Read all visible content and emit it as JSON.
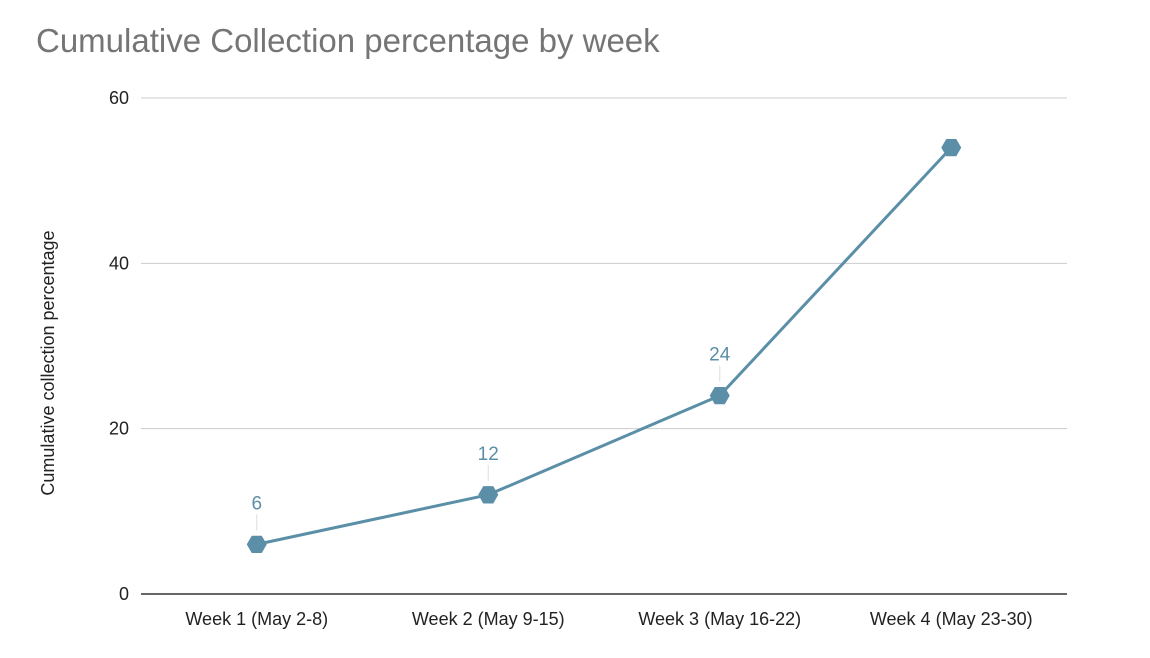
{
  "chart_data": {
    "type": "line",
    "title": "Cumulative Collection percentage by week",
    "xlabel": "",
    "ylabel": "Cumulative collection percentage",
    "categories": [
      "Week 1 (May 2-8)",
      "Week 2 (May 9-15)",
      "Week 3 (May 16-22)",
      "Week 4 (May 23-30)"
    ],
    "series": [
      {
        "values": [
          6,
          12,
          24,
          54
        ],
        "data_labels": [
          "6",
          "12",
          "24",
          ""
        ]
      }
    ],
    "ylim": [
      0,
      60
    ],
    "yticks": [
      0,
      20,
      40,
      60
    ],
    "grid": true,
    "legend": "none",
    "marker": "hexagon",
    "colors": {
      "line": "#5b8fa8",
      "grid": "#cccccc",
      "axis": "#333333"
    }
  }
}
